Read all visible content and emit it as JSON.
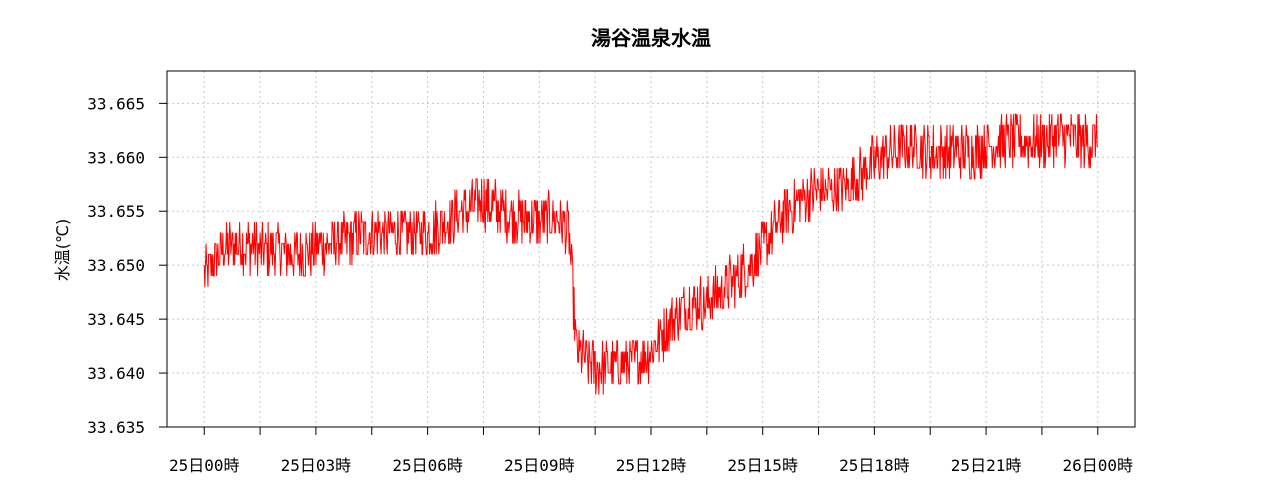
{
  "chart_data": {
    "type": "line",
    "title": "湯谷温泉水温",
    "xlabel": "",
    "ylabel": "水温(℃)",
    "x_tick_labels": [
      "25日00時",
      "25日03時",
      "25日06時",
      "25日09時",
      "25日12時",
      "25日15時",
      "25日18時",
      "25日21時",
      "26日00時"
    ],
    "x_tick_hours": [
      0,
      3,
      6,
      9,
      12,
      15,
      18,
      21,
      24
    ],
    "xlim_hours": [
      -1,
      25
    ],
    "y_tick_labels": [
      "33.635",
      "33.640",
      "33.645",
      "33.650",
      "33.655",
      "33.660",
      "33.665"
    ],
    "y_ticks": [
      33.635,
      33.64,
      33.645,
      33.65,
      33.655,
      33.66,
      33.665
    ],
    "ylim": [
      33.635,
      33.668
    ],
    "grid": true,
    "line_color": "#ff0000",
    "series": [
      {
        "name": "",
        "color": "#ff0000",
        "x_hours": [
          0,
          0.5,
          1,
          1.5,
          2,
          2.5,
          3,
          3.5,
          4,
          4.5,
          5,
          5.5,
          6,
          6.5,
          7,
          7.5,
          8,
          8.5,
          9,
          9.5,
          9.8,
          10.0,
          10.5,
          11,
          11.5,
          12,
          12.5,
          13,
          13.5,
          14,
          14.5,
          15,
          15.5,
          16,
          16.5,
          17,
          17.5,
          18,
          18.5,
          19,
          19.5,
          20,
          20.5,
          21,
          21.5,
          22,
          22.5,
          23,
          23.5,
          24
        ],
        "values": [
          33.649,
          33.6515,
          33.652,
          33.6515,
          33.6515,
          33.651,
          33.6515,
          33.652,
          33.6525,
          33.653,
          33.653,
          33.653,
          33.653,
          33.654,
          33.655,
          33.656,
          33.655,
          33.6545,
          33.654,
          33.6545,
          33.653,
          33.642,
          33.6405,
          33.6405,
          33.641,
          33.642,
          33.6445,
          33.6465,
          33.6465,
          33.648,
          33.6495,
          33.6515,
          33.6545,
          33.656,
          33.657,
          33.657,
          33.658,
          33.6595,
          33.6605,
          33.661,
          33.6605,
          33.6605,
          33.6605,
          33.661,
          33.6615,
          33.6615,
          33.6615,
          33.662,
          33.6615,
          33.6615
        ],
        "noise_amplitude": 0.0025
      }
    ]
  }
}
